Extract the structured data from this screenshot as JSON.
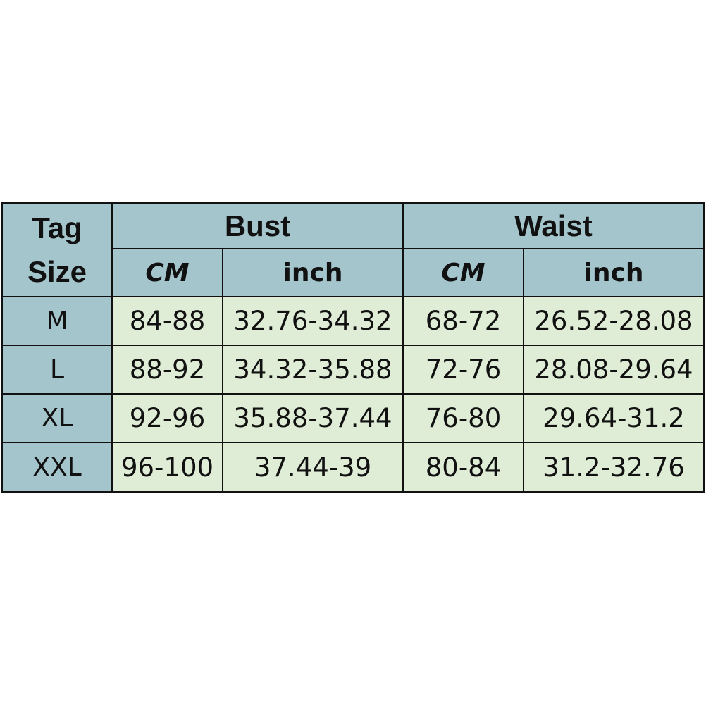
{
  "header": {
    "tag_size_line1": "Tag",
    "tag_size_line2": "Size",
    "bust": "Bust",
    "waist": "Waist",
    "sub": [
      "CM",
      "inch",
      "CM",
      "inch"
    ]
  },
  "colors": {
    "header_bg": "#a4c5cc",
    "cell_bg": "#e0edd6",
    "border": "#111111"
  },
  "rows": [
    {
      "size": "M",
      "bust_cm": "84-88",
      "bust_inch": "32.76-34.32",
      "waist_cm": "68-72",
      "waist_inch": "26.52-28.08"
    },
    {
      "size": "L",
      "bust_cm": "88-92",
      "bust_inch": "34.32-35.88",
      "waist_cm": "72-76",
      "waist_inch": "28.08-29.64"
    },
    {
      "size": "XL",
      "bust_cm": "92-96",
      "bust_inch": "35.88-37.44",
      "waist_cm": "76-80",
      "waist_inch": "29.64-31.2"
    },
    {
      "size": "XXL",
      "bust_cm": "96-100",
      "bust_inch": "37.44-39",
      "waist_cm": "80-84",
      "waist_inch": "31.2-32.76"
    }
  ]
}
